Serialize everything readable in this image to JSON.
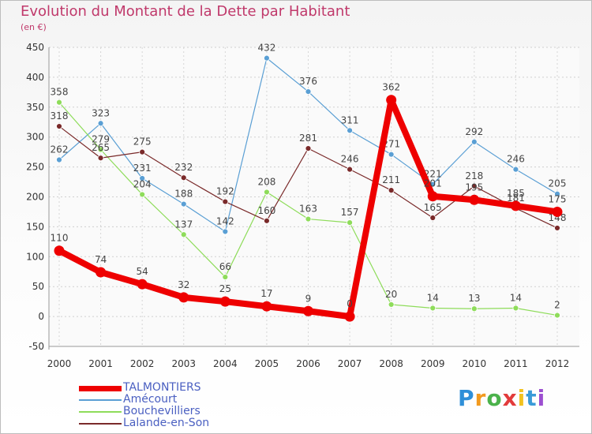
{
  "title": "Evolution du Montant de la Dette par Habitant",
  "subtitle": "(en €)",
  "logo": "Proxiti",
  "chart_data": {
    "type": "line",
    "title": "Evolution du Montant de la Dette par Habitant",
    "ylabel": "(en €)",
    "x": [
      "2000",
      "2001",
      "2002",
      "2003",
      "2004",
      "2005",
      "2006",
      "2007",
      "2008",
      "2009",
      "2010",
      "2011",
      "2012"
    ],
    "ylim": [
      -50,
      450
    ],
    "yticks": [
      -50,
      0,
      50,
      100,
      150,
      200,
      250,
      300,
      350,
      400,
      450
    ],
    "grid": true,
    "legend_position": "bottom-left",
    "series": [
      {
        "name": "TALMONTIERS",
        "color": "#ee0000",
        "values": [
          110,
          74,
          54,
          32,
          25,
          17,
          9,
          0,
          362,
          201,
          195,
          185,
          175
        ]
      },
      {
        "name": "Amécourt",
        "color": "#5a9fd4",
        "values": [
          262,
          323,
          231,
          188,
          142,
          432,
          376,
          311,
          271,
          221,
          292,
          246,
          205
        ]
      },
      {
        "name": "Bouchevilliers",
        "color": "#8edc5a",
        "values": [
          358,
          279,
          204,
          137,
          66,
          208,
          163,
          157,
          20,
          14,
          13,
          14,
          2
        ]
      },
      {
        "name": "Lalande-en-Son",
        "color": "#7a2a2a",
        "values": [
          318,
          265,
          275,
          232,
          192,
          160,
          281,
          246,
          211,
          165,
          218,
          181,
          148
        ]
      }
    ]
  }
}
